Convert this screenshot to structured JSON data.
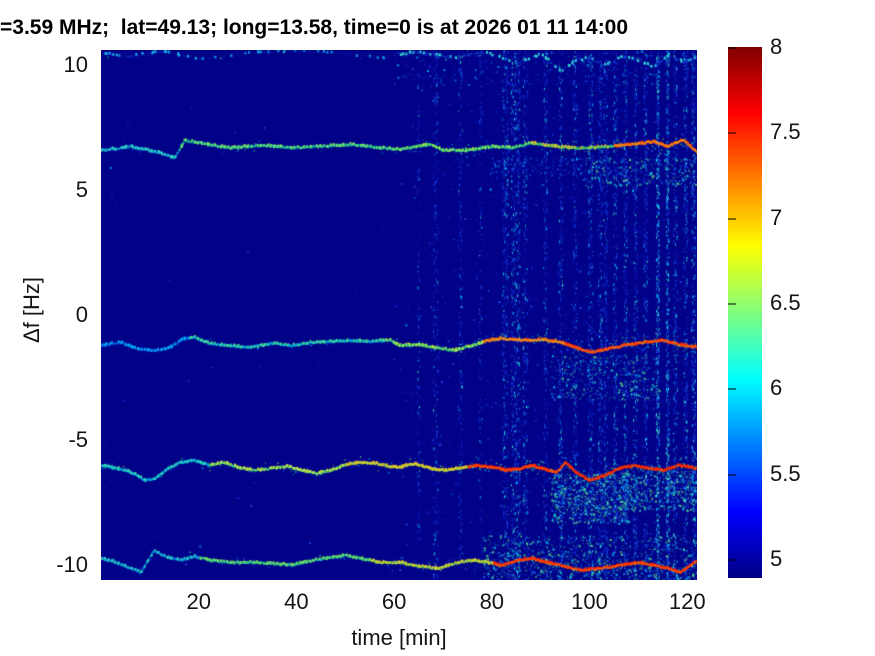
{
  "figure": {
    "title": "=3.59 MHz;  lat=49.13; long=13.58, time=0 is at 2026 01 11 14:00"
  },
  "chart_data": {
    "type": "heatmap",
    "subtype": "doppler-spectrogram",
    "title": "=3.59 MHz;  lat=49.13; long=13.58, time=0 is at 2026 01 11 14:00",
    "xlabel": "time [min]",
    "ylabel": "Δf [Hz]",
    "xlim": [
      0,
      122
    ],
    "ylim": [
      -10.6,
      10.6
    ],
    "xticks": {
      "values": [
        20,
        40,
        60,
        80,
        100,
        120
      ],
      "labels": [
        "20",
        "40",
        "60",
        "80",
        "100",
        "120"
      ]
    },
    "yticks": {
      "values": [
        10,
        5,
        0,
        -5,
        -10
      ],
      "labels": [
        "10",
        "5",
        "0",
        "-5",
        "-10"
      ]
    },
    "grid": false,
    "colorbar": {
      "position": "right",
      "clim": [
        4.89,
        8
      ],
      "ticks": {
        "values": [
          8,
          7.5,
          7,
          6.5,
          6,
          5.5,
          5
        ],
        "labels": [
          "8",
          "7.5",
          "7",
          "6.5",
          "6",
          "5.5",
          "5"
        ]
      },
      "colormap": "jet",
      "gradient_bottom_to_top": {
        "colors": [
          "#000084",
          "#0000ff",
          "#00ffff",
          "#80ff7d",
          "#ffff00",
          "#ff0000",
          "#800000"
        ],
        "stops_pct": [
          0,
          12.5,
          37.5,
          50,
          62.5,
          87.5,
          100
        ]
      }
    },
    "background_color": "#020289",
    "halo_palette": [
      "#00e0ff",
      "#20ff9c",
      "#1e64ff",
      "#8cff50",
      "#0a3cff"
    ],
    "cloud_palettes": {
      "cyan": [
        "#00e0ff",
        "#30f0c8",
        "#2060ff",
        "#70ff80"
      ],
      "blue": [
        "#1030d0",
        "#2050f0",
        "#00c0ff"
      ]
    },
    "traces": [
      {
        "name": "doppler-trace-top-edge",
        "sparse": 0.5,
        "points": [
          [
            0,
            10.5
          ],
          [
            5,
            10.35
          ],
          [
            12,
            10.55
          ],
          [
            21,
            10.25
          ],
          [
            30,
            10.5
          ],
          [
            40,
            10.6
          ],
          [
            50,
            10.45
          ],
          [
            58,
            10.3
          ],
          [
            64,
            10.55
          ],
          [
            72,
            10.3
          ],
          [
            78,
            10.55
          ],
          [
            85,
            10.1
          ],
          [
            90,
            10.45
          ],
          [
            94,
            9.75
          ],
          [
            97,
            10.2
          ],
          [
            100,
            10.3
          ],
          [
            103,
            10.0
          ],
          [
            106,
            10.35
          ],
          [
            110,
            10.2
          ],
          [
            113,
            9.9
          ],
          [
            116,
            10.4
          ],
          [
            119,
            10.15
          ],
          [
            122,
            10.3
          ]
        ],
        "segments": [
          [
            20,
            "#0f2cc0",
            "#15c8e8",
            0.02,
            3,
            0.5,
            0.3
          ],
          [
            60,
            "#0c22b0",
            "#10a8e0",
            0.02,
            3,
            0.35,
            0.2
          ],
          [
            122,
            "#1545d0",
            "#30e8d0",
            0.1,
            4,
            0.6,
            0.45
          ]
        ]
      },
      {
        "name": "doppler-trace-plus6",
        "sparse": 0,
        "points": [
          [
            0,
            6.6
          ],
          [
            6,
            6.76
          ],
          [
            12,
            6.5
          ],
          [
            15,
            6.3
          ],
          [
            17,
            7.0
          ],
          [
            20,
            6.9
          ],
          [
            26,
            6.7
          ],
          [
            33,
            6.8
          ],
          [
            39,
            6.7
          ],
          [
            45,
            6.76
          ],
          [
            51,
            6.84
          ],
          [
            57,
            6.7
          ],
          [
            61,
            6.64
          ],
          [
            67,
            6.84
          ],
          [
            70,
            6.6
          ],
          [
            75,
            6.6
          ],
          [
            80,
            6.76
          ],
          [
            84,
            6.7
          ],
          [
            88,
            6.9
          ],
          [
            93,
            6.76
          ],
          [
            98,
            6.68
          ],
          [
            104,
            6.76
          ],
          [
            110,
            6.88
          ],
          [
            113,
            6.96
          ],
          [
            116,
            6.76
          ],
          [
            119,
            7.04
          ],
          [
            122,
            6.5
          ]
        ],
        "segments": [
          [
            16,
            "#0e9ad2",
            "#3ce8c4",
            0.03,
            3,
            0.8,
            0.5
          ],
          [
            60,
            "#18b89a",
            "#8cf05a",
            0.08,
            3,
            0.85,
            0.55
          ],
          [
            88,
            "#22c284",
            "#aaf04c",
            0.15,
            4,
            0.85,
            0.6
          ],
          [
            105,
            "#3cc868",
            "#ffc21e",
            0.28,
            5,
            0.9,
            0.55
          ],
          [
            122,
            "#ff9a14",
            "#ff4a00",
            0.45,
            6,
            0.9,
            0.6
          ]
        ]
      },
      {
        "name": "doppler-trace-minus1",
        "sparse": 0,
        "points": [
          [
            0,
            -1.2
          ],
          [
            4,
            -1.08
          ],
          [
            7,
            -1.32
          ],
          [
            11,
            -1.4
          ],
          [
            14,
            -1.28
          ],
          [
            17,
            -0.92
          ],
          [
            19,
            -0.88
          ],
          [
            22,
            -1.12
          ],
          [
            26,
            -1.2
          ],
          [
            30,
            -1.28
          ],
          [
            35,
            -1.12
          ],
          [
            39,
            -1.2
          ],
          [
            43,
            -1.08
          ],
          [
            47,
            -1.04
          ],
          [
            51,
            -1.0
          ],
          [
            55,
            -1.04
          ],
          [
            59,
            -1.0
          ],
          [
            61,
            -1.2
          ],
          [
            65,
            -1.16
          ],
          [
            69,
            -1.32
          ],
          [
            72,
            -1.4
          ],
          [
            76,
            -1.2
          ],
          [
            79,
            -1.0
          ],
          [
            82,
            -0.92
          ],
          [
            86,
            -1.0
          ],
          [
            90,
            -0.96
          ],
          [
            94,
            -1.08
          ],
          [
            97,
            -1.28
          ],
          [
            100,
            -1.48
          ],
          [
            104,
            -1.32
          ],
          [
            107,
            -1.2
          ],
          [
            111,
            -1.08
          ],
          [
            115,
            -1.0
          ],
          [
            118,
            -1.16
          ],
          [
            122,
            -1.28
          ]
        ],
        "segments": [
          [
            18,
            "#0a64e6",
            "#00ccff",
            0.04,
            3,
            0.7,
            0.45
          ],
          [
            58,
            "#00b4dc",
            "#58e07c",
            0.1,
            3,
            0.8,
            0.5
          ],
          [
            78,
            "#2cc87c",
            "#c8ee3c",
            0.18,
            4,
            0.85,
            0.55
          ],
          [
            95,
            "#f0a01e",
            "#ff5a0a",
            0.3,
            5,
            0.9,
            0.6
          ],
          [
            122,
            "#ff6a0a",
            "#ff2800",
            0.45,
            6,
            0.9,
            0.65
          ]
        ]
      },
      {
        "name": "doppler-trace-minus6",
        "sparse": 0,
        "points": [
          [
            0,
            -6.0
          ],
          [
            3,
            -6.12
          ],
          [
            6,
            -6.28
          ],
          [
            9,
            -6.6
          ],
          [
            11,
            -6.52
          ],
          [
            13,
            -6.2
          ],
          [
            16,
            -5.88
          ],
          [
            19,
            -5.8
          ],
          [
            22,
            -6.0
          ],
          [
            25,
            -5.88
          ],
          [
            28,
            -6.08
          ],
          [
            31,
            -6.2
          ],
          [
            35,
            -6.12
          ],
          [
            38,
            -6.04
          ],
          [
            41,
            -6.2
          ],
          [
            44,
            -6.32
          ],
          [
            47,
            -6.2
          ],
          [
            50,
            -5.96
          ],
          [
            53,
            -5.88
          ],
          [
            56,
            -5.92
          ],
          [
            59,
            -6.04
          ],
          [
            61,
            -6.08
          ],
          [
            64,
            -5.92
          ],
          [
            67,
            -6.12
          ],
          [
            70,
            -6.2
          ],
          [
            73,
            -6.12
          ],
          [
            77,
            -6.0
          ],
          [
            80,
            -6.08
          ],
          [
            83,
            -6.2
          ],
          [
            86,
            -6.12
          ],
          [
            88,
            -6.0
          ],
          [
            90,
            -6.12
          ],
          [
            93,
            -6.28
          ],
          [
            95,
            -5.88
          ],
          [
            97,
            -6.28
          ],
          [
            100,
            -6.6
          ],
          [
            103,
            -6.4
          ],
          [
            106,
            -6.12
          ],
          [
            109,
            -6.0
          ],
          [
            112,
            -6.12
          ],
          [
            115,
            -6.2
          ],
          [
            118,
            -6.0
          ],
          [
            122,
            -6.12
          ]
        ],
        "segments": [
          [
            22,
            "#00b4dc",
            "#3ce4ac",
            0.08,
            3,
            0.8,
            0.5
          ],
          [
            50,
            "#52cc6a",
            "#e6ee3a",
            0.16,
            4,
            0.85,
            0.55
          ],
          [
            75,
            "#a6d83c",
            "#ffbe1e",
            0.25,
            5,
            0.9,
            0.6
          ],
          [
            95,
            "#ff5a00",
            "#ff1e00",
            0.5,
            6,
            0.95,
            0.7
          ],
          [
            122,
            "#ff3c00",
            "#e61e00",
            0.6,
            7,
            0.95,
            0.75
          ]
        ]
      },
      {
        "name": "doppler-trace-minus10",
        "sparse": 0,
        "points": [
          [
            0,
            -9.72
          ],
          [
            3,
            -9.88
          ],
          [
            6,
            -10.12
          ],
          [
            8,
            -10.28
          ],
          [
            10,
            -9.64
          ],
          [
            10.6,
            -9.4
          ],
          [
            13,
            -9.64
          ],
          [
            16,
            -9.8
          ],
          [
            19,
            -9.64
          ],
          [
            22,
            -9.8
          ],
          [
            26,
            -9.88
          ],
          [
            30,
            -9.88
          ],
          [
            35,
            -9.92
          ],
          [
            39,
            -10.0
          ],
          [
            43,
            -9.8
          ],
          [
            47,
            -9.68
          ],
          [
            50,
            -9.6
          ],
          [
            53,
            -9.72
          ],
          [
            57,
            -9.88
          ],
          [
            61,
            -9.88
          ],
          [
            65,
            -10.04
          ],
          [
            69,
            -10.12
          ],
          [
            72,
            -9.92
          ],
          [
            76,
            -9.8
          ],
          [
            79,
            -9.88
          ],
          [
            82,
            -10.0
          ],
          [
            85,
            -9.8
          ],
          [
            88,
            -9.72
          ],
          [
            91,
            -9.88
          ],
          [
            94,
            -10.0
          ],
          [
            98,
            -10.2
          ],
          [
            102,
            -10.12
          ],
          [
            106,
            -10.0
          ],
          [
            110,
            -9.88
          ],
          [
            113,
            -10.0
          ],
          [
            116,
            -10.12
          ],
          [
            118.5,
            -10.28
          ],
          [
            120.5,
            -10.0
          ],
          [
            122,
            -9.8
          ]
        ],
        "segments": [
          [
            20,
            "#0a8cdc",
            "#2cdcc0",
            0.06,
            3,
            0.75,
            0.45
          ],
          [
            55,
            "#1ec09a",
            "#8ce84e",
            0.12,
            3,
            0.8,
            0.5
          ],
          [
            80,
            "#74d24e",
            "#ffd022",
            0.25,
            4,
            0.85,
            0.55
          ],
          [
            122,
            "#ff5a00",
            "#ff2000",
            0.5,
            6,
            0.9,
            0.65
          ]
        ]
      }
    ],
    "noise_columns": [
      [
        64.9,
        3,
        120,
        0.1
      ],
      [
        68.4,
        5,
        260,
        0.15
      ],
      [
        73.5,
        4,
        200,
        0.12
      ],
      [
        77.6,
        3,
        120,
        0.1
      ],
      [
        82.7,
        6,
        420,
        0.2
      ],
      [
        84.8,
        9,
        700,
        0.3
      ],
      [
        86.8,
        5,
        320,
        0.2
      ],
      [
        90.9,
        4,
        260,
        0.15
      ],
      [
        94,
        4,
        300,
        0.2
      ],
      [
        97,
        4,
        280,
        0.15
      ],
      [
        100.1,
        5,
        380,
        0.2
      ],
      [
        102.1,
        4,
        300,
        0.18
      ],
      [
        103.2,
        4,
        280,
        0.15
      ],
      [
        105.2,
        4,
        320,
        0.2
      ],
      [
        107.3,
        4,
        300,
        0.18
      ],
      [
        109.3,
        4,
        340,
        0.2
      ],
      [
        111.4,
        4,
        320,
        0.2
      ],
      [
        113.9,
        3,
        520,
        0.45
      ],
      [
        115.9,
        3,
        480,
        0.4
      ],
      [
        117.5,
        4,
        340,
        0.22
      ],
      [
        119.6,
        4,
        360,
        0.25
      ],
      [
        121.2,
        4,
        420,
        0.3
      ]
    ],
    "clouds": [
      [
        92,
        108,
        -8.3,
        -6.3,
        900,
        "cyan"
      ],
      [
        106,
        122,
        -7.8,
        -6.2,
        600,
        "cyan"
      ],
      [
        78,
        122,
        -10.6,
        -8.8,
        900,
        "cyan"
      ],
      [
        92,
        114,
        -3.4,
        -1.6,
        420,
        "cyan"
      ],
      [
        98,
        122,
        5.2,
        6.3,
        320,
        "cyan"
      ],
      [
        60,
        122,
        9.2,
        10.6,
        240,
        "blue"
      ],
      [
        80,
        98,
        5.6,
        6.3,
        150,
        "blue"
      ]
    ],
    "ambient_speckle": [
      [
        0,
        62,
        350
      ],
      [
        62,
        122,
        2400
      ]
    ]
  }
}
